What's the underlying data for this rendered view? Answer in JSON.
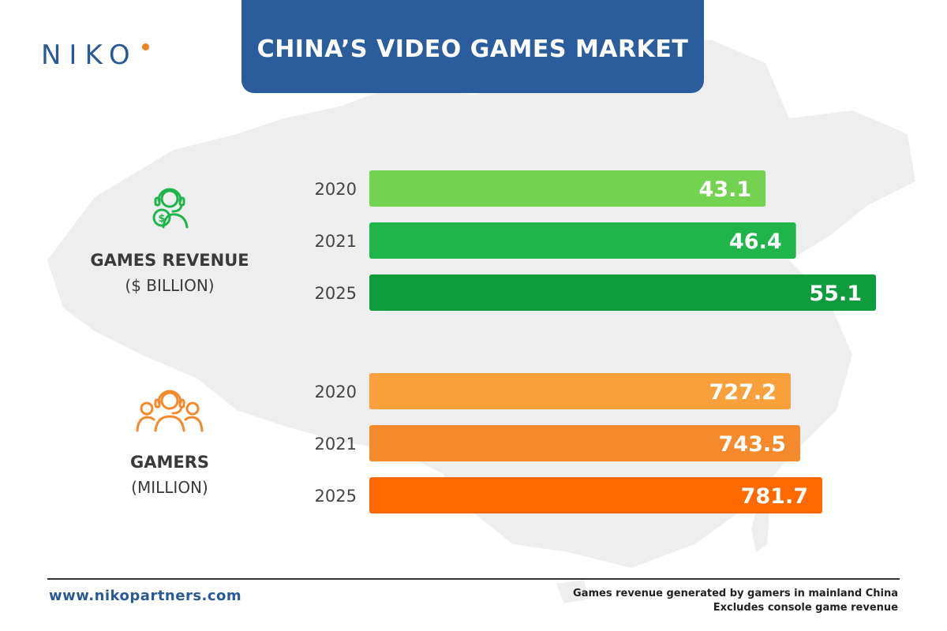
{
  "header": {
    "logo_text": "NIKO",
    "title": "CHINA’S VIDEO GAMES MARKET"
  },
  "colors": {
    "banner": "#2b5d9c",
    "revenue": [
      "#73d24f",
      "#1fb54b",
      "#0e9c3d"
    ],
    "gamers": [
      "#f7a03c",
      "#f48a2c",
      "#ff6a00"
    ],
    "map": "#eeeeee"
  },
  "chart_data": [
    {
      "type": "bar",
      "orientation": "horizontal",
      "title": "GAMES REVENUE",
      "unit": "($ BILLION)",
      "icon": "headset-dollar-icon",
      "categories": [
        "2020",
        "2021",
        "2025"
      ],
      "values": [
        43.1,
        46.4,
        55.1
      ],
      "value_labels": [
        "43.1",
        "46.4",
        "55.1"
      ]
    },
    {
      "type": "bar",
      "orientation": "horizontal",
      "title": "GAMERS",
      "unit": "(MILLION)",
      "icon": "gamers-group-icon",
      "categories": [
        "2020",
        "2021",
        "2025"
      ],
      "values": [
        727.2,
        743.5,
        781.7
      ],
      "value_labels": [
        "727.2",
        "743.5",
        "781.7"
      ]
    }
  ],
  "footer": {
    "url": "www.nikopartners.com",
    "note_line1": "Games revenue generated by gamers in mainland China",
    "note_line2": "Excludes console game revenue"
  }
}
